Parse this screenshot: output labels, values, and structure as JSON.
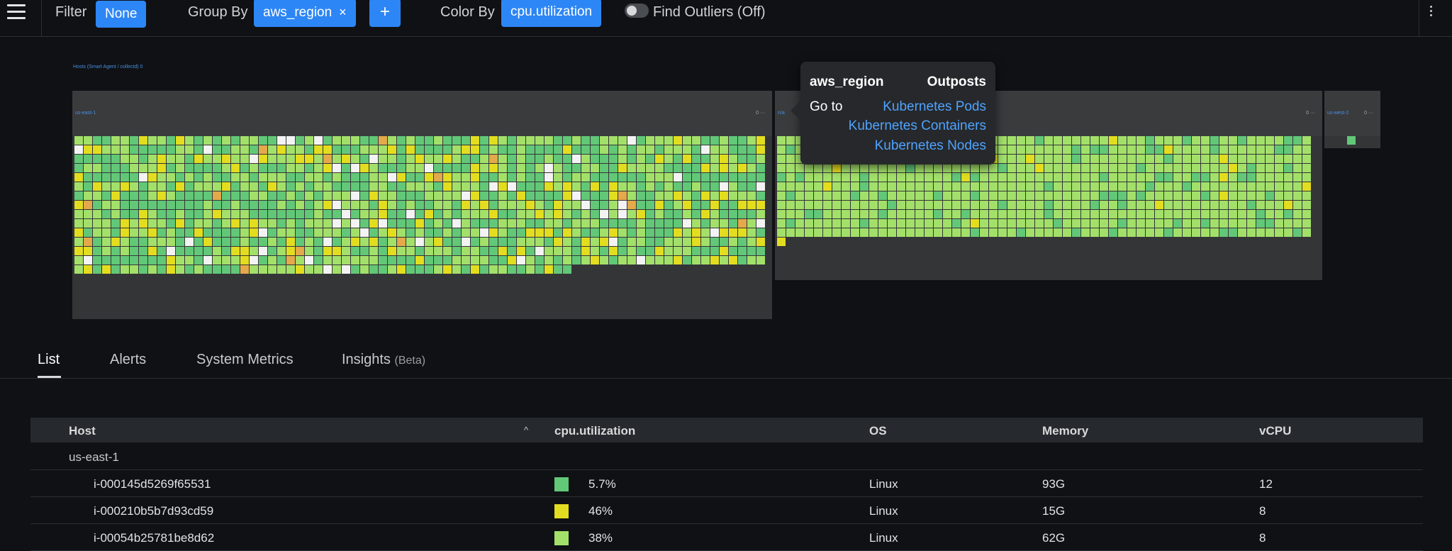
{
  "toolbar": {
    "filter_label": "Filter",
    "filter_value": "None",
    "groupby_label": "Group By",
    "groupby_value": "aws_region",
    "groupby_remove": "×",
    "add_label": "+",
    "colorby_label": "Color By",
    "colorby_value": "cpu.utilization",
    "outliers_label": "Find Outliers (Off)"
  },
  "heatmap": {
    "title": "Hosts (Smart Agent / collectd)",
    "title_suffix": "0",
    "colors": {
      "c1": "#62c878",
      "c2": "#a3e06a",
      "c3": "#e3dd20",
      "c4": "#f3f3f3",
      "c5": "#e3a94a"
    },
    "groups": [
      {
        "label": "us-east-1",
        "meta": "0 ···"
      },
      {
        "label": "n/a",
        "meta": "0 ···"
      },
      {
        "label": "us-west-2",
        "meta": "0 ···"
      }
    ]
  },
  "tooltip": {
    "key": "aws_region",
    "value": "Outposts",
    "goto_label": "Go to",
    "links": [
      "Kubernetes Pods",
      "Kubernetes Containers",
      "Kubernetes Nodes"
    ]
  },
  "tabs": [
    {
      "label": "List"
    },
    {
      "label": "Alerts"
    },
    {
      "label": "System Metrics"
    },
    {
      "label": "Insights",
      "suffix": "(Beta)"
    }
  ],
  "table": {
    "columns": [
      "Host",
      "cpu.utilization",
      "OS",
      "Memory",
      "vCPU"
    ],
    "sort_icon": "^",
    "group_label": "us-east-1",
    "rows": [
      {
        "host": "i-000145d5269f65531",
        "cpu": "5.7%",
        "color": "#62c878",
        "os": "Linux",
        "memory": "93G",
        "vcpu": "12"
      },
      {
        "host": "i-000210b5b7d93cd59",
        "cpu": "46%",
        "color": "#e3dd20",
        "os": "Linux",
        "memory": "15G",
        "vcpu": "8"
      },
      {
        "host": "i-00054b25781be8d62",
        "cpu": "38%",
        "color": "#a3e06a",
        "os": "Linux",
        "memory": "62G",
        "vcpu": "8"
      }
    ]
  }
}
